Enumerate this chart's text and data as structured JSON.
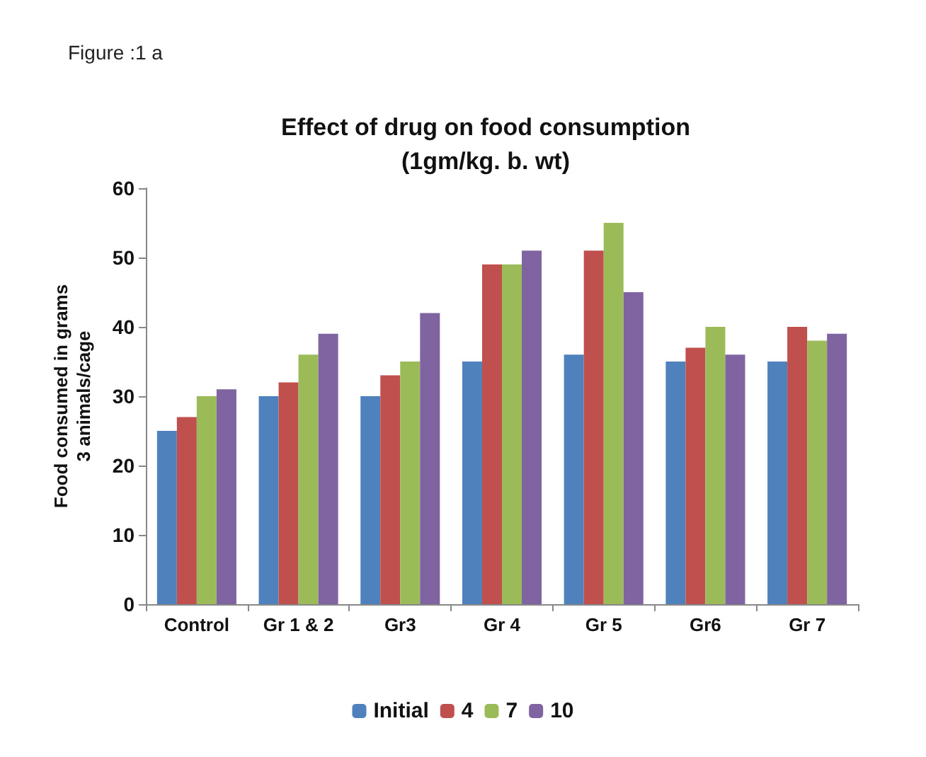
{
  "chart_data": {
    "type": "bar",
    "title": "Effect of drug on food consumption\n(1gm/kg. b. wt)",
    "ylabel": "Food consumed in grams\n3 animals/cage",
    "annotations": [
      "Figure :1 a"
    ],
    "categories": [
      "Control",
      "Gr 1 & 2",
      "Gr3",
      "Gr 4",
      "Gr 5",
      "Gr6",
      "Gr 7"
    ],
    "series": [
      {
        "name": "Initial",
        "color": "#4f81bd",
        "values": [
          25,
          30,
          30,
          35,
          36,
          35,
          35
        ]
      },
      {
        "name": "4",
        "color": "#c0504d",
        "values": [
          27,
          32,
          33,
          49,
          51,
          37,
          40
        ]
      },
      {
        "name": "7",
        "color": "#9bbb59",
        "values": [
          30,
          36,
          35,
          49,
          55,
          40,
          38
        ]
      },
      {
        "name": "10",
        "color": "#8064a2",
        "values": [
          31,
          39,
          42,
          51,
          45,
          36,
          39
        ]
      }
    ],
    "ylim": [
      0,
      60
    ],
    "yticks": [
      0,
      10,
      20,
      30,
      40,
      50,
      60
    ],
    "grid": false,
    "legend": "bottom"
  }
}
